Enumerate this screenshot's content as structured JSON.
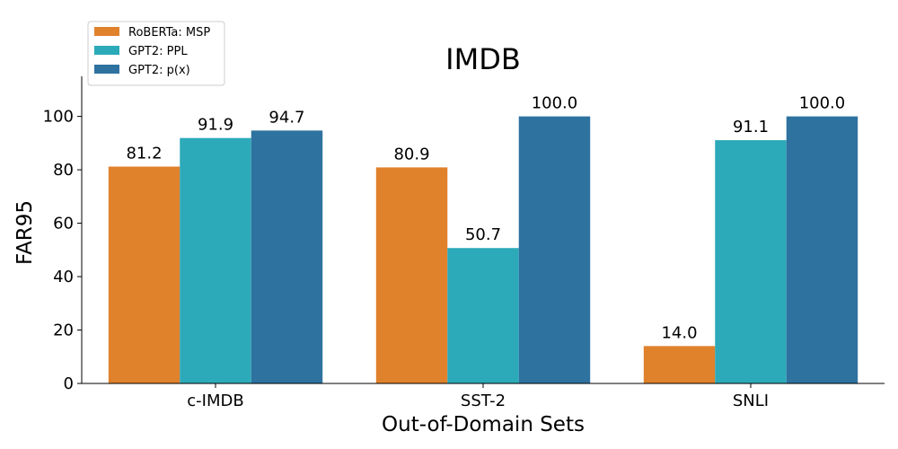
{
  "chart_data": {
    "type": "bar",
    "title": "IMDB",
    "xlabel": "Out-of-Domain Sets",
    "ylabel": "FAR95",
    "categories": [
      "c-IMDB",
      "SST-2",
      "SNLI"
    ],
    "ylim": [
      0,
      115
    ],
    "yticks": [
      0,
      20,
      40,
      60,
      80,
      100
    ],
    "grid": false,
    "legend_position": "top-left",
    "series": [
      {
        "name": "RoBERTa: MSP",
        "color": "#e0812c",
        "values": [
          81.2,
          80.9,
          14.0
        ],
        "labels": [
          "81.2",
          "80.9",
          "14.0"
        ]
      },
      {
        "name": "GPT2: PPL",
        "color": "#2caab9",
        "values": [
          91.9,
          50.7,
          91.1
        ],
        "labels": [
          "91.9",
          "50.7",
          "91.1"
        ]
      },
      {
        "name": "GPT2: p(x)",
        "color": "#2e72a0",
        "values": [
          94.7,
          100.0,
          100.0
        ],
        "labels": [
          "94.7",
          "100.0",
          "100.0"
        ]
      }
    ]
  }
}
